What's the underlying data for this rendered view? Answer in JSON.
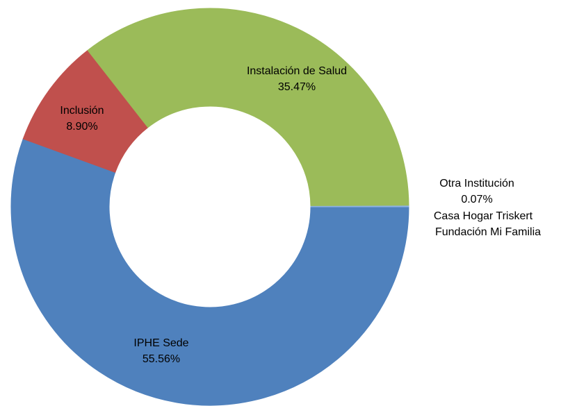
{
  "chart_data": {
    "type": "donut",
    "categories": [
      "IPHE Sede",
      "Inclusión",
      "Instalación de Salud",
      "Otra Institución",
      "Casa Hogar Triskert",
      "Fundación Mi Familia"
    ],
    "values": [
      55.56,
      8.9,
      35.47,
      0.07,
      0,
      0
    ],
    "value_labels": [
      "55.56%",
      "8.90%",
      "35.47%",
      "0.07%",
      null,
      null
    ],
    "colors": [
      "#4f81bd",
      "#c0504d",
      "#9bbb59",
      "#8db3e2",
      "#8064a2",
      "#4bacc6"
    ]
  }
}
